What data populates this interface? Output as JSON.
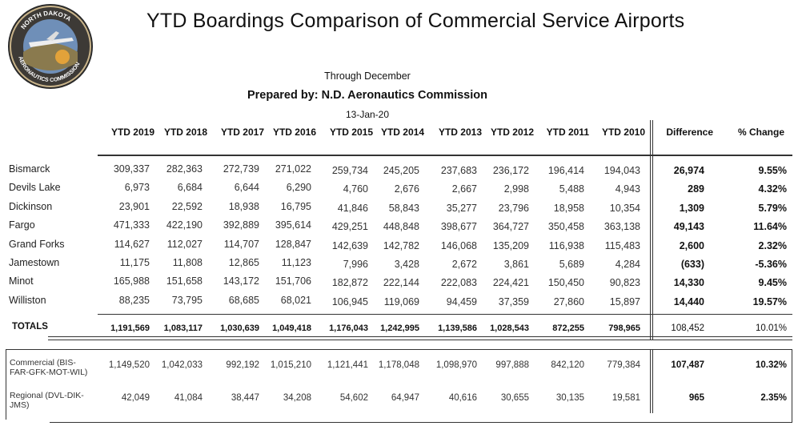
{
  "header": {
    "title": "YTD Boardings Comparison of Commercial Service Airports",
    "through": "Through December",
    "prepared_by": "Prepared by: N.D. Aeronautics Commission",
    "date": "13-Jan-20",
    "seal_text": "NORTH DAKOTA AERONAUTICS COMMISSION"
  },
  "columns": [
    "YTD 2019",
    "YTD 2018",
    "YTD 2017",
    "YTD 2016",
    "YTD 2015",
    "YTD 2014",
    "YTD 2013",
    "YTD 2012",
    "YTD 2011",
    "YTD 2010"
  ],
  "difference_label": "Difference",
  "change_label": "% Change",
  "rows": [
    {
      "name": "Bismarck",
      "values": [
        "309,337",
        "282,363",
        "272,739",
        "271,022",
        "259,734",
        "245,205",
        "237,683",
        "236,172",
        "196,414",
        "194,043"
      ],
      "difference": "26,974",
      "change": "9.55%"
    },
    {
      "name": "Devils Lake",
      "values": [
        "6,973",
        "6,684",
        "6,644",
        "6,290",
        "4,760",
        "2,676",
        "2,667",
        "2,998",
        "5,488",
        "4,943"
      ],
      "difference": "289",
      "change": "4.32%"
    },
    {
      "name": "Dickinson",
      "values": [
        "23,901",
        "22,592",
        "18,938",
        "16,795",
        "41,846",
        "58,843",
        "35,277",
        "23,796",
        "18,958",
        "10,354"
      ],
      "difference": "1,309",
      "change": "5.79%"
    },
    {
      "name": "Fargo",
      "values": [
        "471,333",
        "422,190",
        "392,889",
        "395,614",
        "429,251",
        "448,848",
        "398,677",
        "364,727",
        "350,458",
        "363,138"
      ],
      "difference": "49,143",
      "change": "11.64%"
    },
    {
      "name": "Grand Forks",
      "values": [
        "114,627",
        "112,027",
        "114,707",
        "128,847",
        "142,639",
        "142,782",
        "146,068",
        "135,209",
        "116,938",
        "115,483"
      ],
      "difference": "2,600",
      "change": "2.32%"
    },
    {
      "name": "Jamestown",
      "values": [
        "11,175",
        "11,808",
        "12,865",
        "11,123",
        "7,996",
        "3,428",
        "2,672",
        "3,861",
        "5,689",
        "4,284"
      ],
      "difference": "(633)",
      "change": "-5.36%"
    },
    {
      "name": "Minot",
      "values": [
        "165,988",
        "151,658",
        "143,172",
        "151,706",
        "182,872",
        "222,144",
        "222,083",
        "224,421",
        "150,450",
        "90,823"
      ],
      "difference": "14,330",
      "change": "9.45%"
    },
    {
      "name": "Williston",
      "values": [
        "88,235",
        "73,795",
        "68,685",
        "68,021",
        "106,945",
        "119,069",
        "94,459",
        "37,359",
        "27,860",
        "15,897"
      ],
      "difference": "14,440",
      "change": "19.57%"
    }
  ],
  "totals": {
    "name": "TOTALS",
    "values": [
      "1,191,569",
      "1,083,117",
      "1,030,639",
      "1,049,418",
      "1,176,043",
      "1,242,995",
      "1,139,586",
      "1,028,543",
      "872,255",
      "798,965"
    ],
    "difference": "108,452",
    "change": "10.01%"
  },
  "groups": [
    {
      "name": "Commercial (BIS-FAR-GFK-MOT-WIL)",
      "line1": "Commercial (BIS-",
      "line2": "FAR-GFK-MOT-WIL)",
      "values": [
        "1,149,520",
        "1,042,033",
        "992,192",
        "1,015,210",
        "1,121,441",
        "1,178,048",
        "1,098,970",
        "997,888",
        "842,120",
        "779,384"
      ],
      "difference": "107,487",
      "change": "10.32%"
    },
    {
      "name": "Regional (DVL-DIK-JMS)",
      "line1": "Regional (DVL-DIK-",
      "line2": "JMS)",
      "values": [
        "42,049",
        "41,084",
        "38,447",
        "34,208",
        "54,602",
        "64,947",
        "40,616",
        "30,655",
        "30,135",
        "19,581"
      ],
      "difference": "965",
      "change": "2.35%"
    }
  ]
}
